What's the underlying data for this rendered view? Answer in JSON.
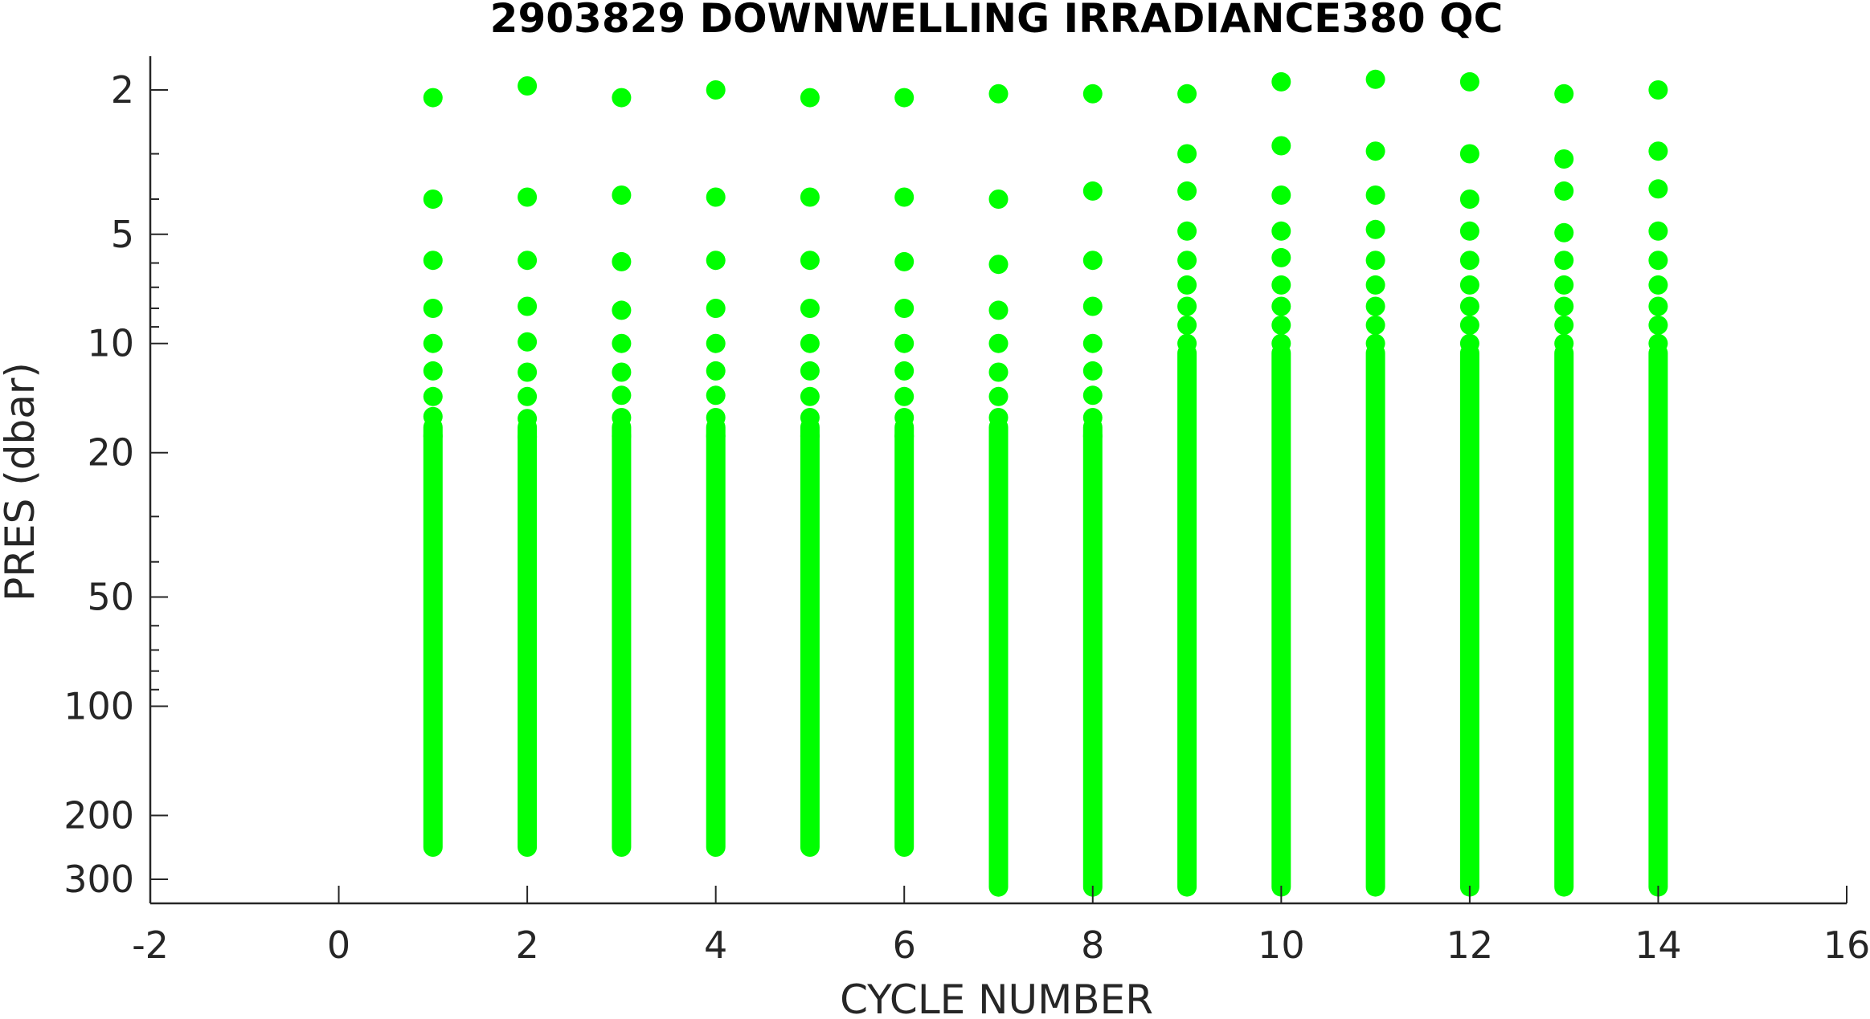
{
  "chart_data": {
    "type": "scatter",
    "title": "2903829  DOWNWELLING IRRADIANCE380 QC",
    "xlabel": "CYCLE NUMBER",
    "ylabel": "PRES (dbar)",
    "xlim": [
      -2,
      16
    ],
    "ylim": [
      1.5,
      340
    ],
    "y_scale": "log",
    "y_reversed": true,
    "grid": false,
    "legend": "none",
    "marker_color": "#00ff00",
    "x_ticks": [
      -2,
      0,
      2,
      4,
      6,
      8,
      10,
      12,
      14,
      16
    ],
    "y_ticks": [
      2,
      5,
      10,
      20,
      50,
      100,
      200,
      300
    ],
    "series": [
      {
        "values": [
          {
            "x": 1,
            "top_points": [
              2.1,
              4.0,
              5.9,
              8.0,
              10.0,
              11.9,
              14.0,
              15.9,
              18.0
            ],
            "dense_range": [
              16,
              260
            ]
          },
          {
            "x": 2,
            "top_points": [
              1.95,
              3.95,
              5.9,
              7.9,
              9.9,
              12.0,
              14.0,
              16.1,
              18.1
            ],
            "dense_range": [
              16,
              260
            ]
          },
          {
            "x": 3,
            "top_points": [
              2.1,
              3.9,
              5.95,
              8.1,
              10.0,
              12.0,
              13.9,
              16.0,
              18.0
            ],
            "dense_range": [
              16,
              260
            ]
          },
          {
            "x": 4,
            "top_points": [
              2.0,
              3.95,
              5.9,
              8.0,
              10.0,
              11.9,
              13.9,
              16.0,
              18.0
            ],
            "dense_range": [
              16,
              260
            ]
          },
          {
            "x": 5,
            "top_points": [
              2.1,
              3.95,
              5.9,
              8.0,
              10.0,
              11.9,
              14.0,
              16.0,
              18.0
            ],
            "dense_range": [
              16,
              260
            ]
          },
          {
            "x": 6,
            "top_points": [
              2.1,
              3.95,
              5.95,
              8.0,
              10.0,
              11.9,
              14.0,
              16.0,
              18.0
            ],
            "dense_range": [
              16,
              260
            ]
          },
          {
            "x": 7,
            "top_points": [
              2.05,
              4.0,
              6.05,
              8.1,
              10.0,
              12.0,
              14.0,
              16.0,
              18.0
            ],
            "dense_range": [
              16,
              335
            ]
          },
          {
            "x": 8,
            "top_points": [
              2.05,
              3.8,
              5.9,
              7.9,
              10.0,
              11.9,
              13.9,
              16.0,
              18.0
            ],
            "dense_range": [
              16,
              335
            ]
          },
          {
            "x": 9,
            "top_points": [
              2.05,
              3.0,
              3.8,
              4.9,
              5.9,
              6.9,
              7.9,
              8.9,
              10.0
            ],
            "dense_range": [
              10,
              335
            ]
          },
          {
            "x": 10,
            "top_points": [
              1.9,
              2.85,
              3.9,
              4.9,
              5.8,
              6.9,
              7.9,
              8.9,
              10.0
            ],
            "dense_range": [
              10,
              335
            ]
          },
          {
            "x": 11,
            "top_points": [
              1.87,
              2.95,
              3.9,
              4.85,
              5.9,
              6.9,
              7.9,
              8.9,
              10.0
            ],
            "dense_range": [
              10,
              335
            ]
          },
          {
            "x": 12,
            "top_points": [
              1.9,
              3.0,
              4.0,
              4.9,
              5.9,
              6.9,
              7.9,
              8.9,
              10.0
            ],
            "dense_range": [
              10,
              335
            ]
          },
          {
            "x": 13,
            "top_points": [
              2.05,
              3.1,
              3.8,
              4.95,
              5.9,
              6.9,
              7.9,
              8.9,
              10.0
            ],
            "dense_range": [
              10,
              335
            ]
          },
          {
            "x": 14,
            "top_points": [
              2.0,
              2.95,
              3.75,
              4.9,
              5.9,
              6.9,
              7.9,
              8.9,
              10.0
            ],
            "dense_range": [
              10,
              335
            ]
          }
        ]
      }
    ]
  }
}
